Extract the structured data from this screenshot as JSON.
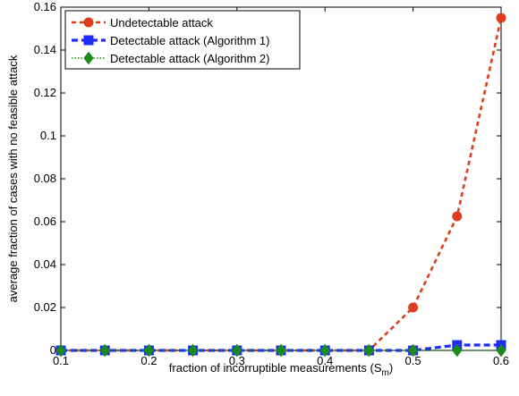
{
  "chart_data": {
    "type": "line",
    "title": "",
    "xlabel": "fraction of incorruptible measurements (S",
    "xlabel_subscript": "m",
    "xlabel_suffix": ")",
    "ylabel": "average fraction of cases with no feasible attack",
    "xlim": [
      0.1,
      0.6
    ],
    "ylim": [
      0,
      0.16
    ],
    "x_ticks": [
      0.1,
      0.2,
      0.3,
      0.4,
      0.5,
      0.6
    ],
    "x_tick_labels": [
      "0.1",
      "0.2",
      "0.3",
      "0.4",
      "0.5",
      "0.6"
    ],
    "y_ticks": [
      0,
      0.02,
      0.04,
      0.06,
      0.08,
      0.1,
      0.12,
      0.14,
      0.16
    ],
    "y_tick_labels": [
      "0",
      "0.02",
      "0.04",
      "0.06",
      "0.08",
      "0.1",
      "0.12",
      "0.14",
      "0.16"
    ],
    "grid": false,
    "legend_position": "top-left",
    "x": [
      0.1,
      0.15,
      0.2,
      0.25,
      0.3,
      0.35,
      0.4,
      0.45,
      0.5,
      0.55,
      0.6
    ],
    "series": [
      {
        "name": "Undetectable attack",
        "color": "#e03c1e",
        "marker": "circle",
        "values": [
          0,
          0,
          0,
          0,
          0,
          0,
          0,
          0,
          0.02,
          0.0625,
          0.155
        ]
      },
      {
        "name": "Detectable attack (Algorithm 1)",
        "color": "#1f2cff",
        "marker": "square",
        "values": [
          0,
          0,
          0,
          0,
          0,
          0,
          0,
          0,
          0,
          0.0025,
          0.0025
        ]
      },
      {
        "name": "Detectable attack (Algorithm 2)",
        "color": "#1a8a1a",
        "marker": "diamond",
        "values": [
          0,
          0,
          0,
          0,
          0,
          0,
          0,
          0,
          0,
          0,
          0
        ]
      }
    ]
  }
}
